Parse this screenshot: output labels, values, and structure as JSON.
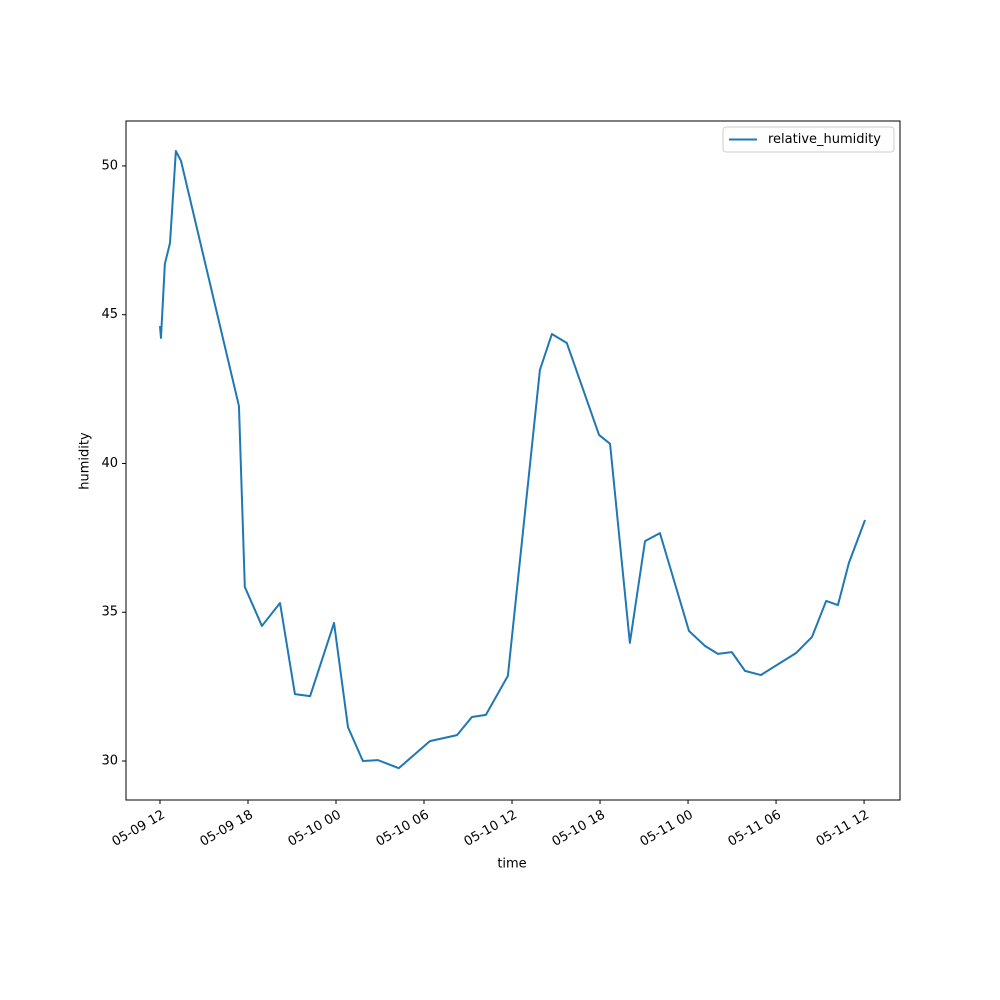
{
  "chart_data": {
    "type": "line",
    "xlabel": "time",
    "ylabel": "humidity",
    "x": [
      "05-09 12:00",
      "05-09 12:04",
      "05-09 12:20",
      "05-09 12:41",
      "05-09 13:05",
      "05-09 13:26",
      "05-09 17:23",
      "05-09 17:47",
      "05-09 18:57",
      "05-09 20:11",
      "05-09 21:12",
      "05-09 22:14",
      "05-09 23:52",
      "05-10 00:49",
      "05-10 01:50",
      "05-10 02:52",
      "05-10 04:17",
      "05-10 06:24",
      "05-10 08:15",
      "05-10 09:16",
      "05-10 10:13",
      "05-10 11:43",
      "05-10 13:54",
      "05-10 14:43",
      "05-10 15:44",
      "05-10 17:56",
      "05-10 18:41",
      "05-10 20:02",
      "05-10 21:04",
      "05-10 22:05",
      "05-11 00:04",
      "05-11 01:09",
      "05-11 02:02",
      "05-11 02:59",
      "05-11 03:53",
      "05-11 04:58",
      "05-11 07:22",
      "05-11 08:27",
      "05-11 09:25",
      "05-11 10:13",
      "05-11 10:58",
      "05-11 12:04"
    ],
    "series": [
      {
        "name": "relative_humidity",
        "color": "#1f77b4",
        "values": [
          44.62,
          44.22,
          46.71,
          47.41,
          50.5,
          50.17,
          41.93,
          35.85,
          34.54,
          35.31,
          32.25,
          32.18,
          34.64,
          31.14,
          30.0,
          30.03,
          29.76,
          30.67,
          30.87,
          31.48,
          31.55,
          32.86,
          43.14,
          44.35,
          44.05,
          40.96,
          40.66,
          33.97,
          37.39,
          37.66,
          34.37,
          33.87,
          33.6,
          33.66,
          33.03,
          32.89,
          33.63,
          34.17,
          35.38,
          35.24,
          36.66,
          38.1
        ]
      }
    ],
    "xlim": [
      "05-09 09:41",
      "05-11 14:27"
    ],
    "xticks": [
      "05-09 12",
      "05-09 18",
      "05-10 00",
      "05-10 06",
      "05-10 12",
      "05-10 18",
      "05-11 00",
      "05-11 06",
      "05-11 12"
    ],
    "ylim": [
      28.69,
      51.51
    ],
    "yticks": [
      30,
      35,
      40,
      45,
      50
    ],
    "legend": "upper right"
  }
}
